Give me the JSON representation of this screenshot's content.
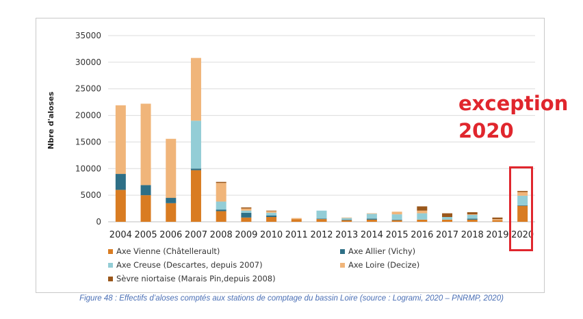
{
  "chart_data": {
    "type": "bar",
    "stacked": true,
    "ylabel": "Nbre d'aloses",
    "ylim": [
      0,
      35000
    ],
    "yticks": [
      0,
      5000,
      10000,
      15000,
      20000,
      25000,
      30000,
      35000
    ],
    "categories": [
      "2004",
      "2005",
      "2006",
      "2007",
      "2008",
      "2009",
      "2010",
      "2011",
      "2012",
      "2013",
      "2014",
      "2015",
      "2016",
      "2017",
      "2018",
      "2019",
      "2020"
    ],
    "series": [
      {
        "name": "Axe Vienne (Châtellerault)",
        "color": "#d97c22",
        "values": [
          6000,
          5000,
          3500,
          9700,
          2000,
          800,
          900,
          500,
          500,
          300,
          400,
          300,
          400,
          400,
          400,
          300,
          3000
        ]
      },
      {
        "name": "Axe Allier (Vichy)",
        "color": "#2e6f86",
        "values": [
          3000,
          1900,
          1000,
          300,
          300,
          900,
          300,
          0,
          100,
          100,
          200,
          100,
          0,
          0,
          200,
          0,
          100
        ]
      },
      {
        "name": "Axe Creuse (Descartes, depuis 2007)",
        "color": "#93cdd6",
        "values": [
          0,
          0,
          0,
          9000,
          1500,
          400,
          500,
          0,
          1500,
          300,
          900,
          1000,
          1200,
          500,
          700,
          0,
          1800
        ]
      },
      {
        "name": "Axe Loire (Decize)",
        "color": "#f0b57a",
        "values": [
          12900,
          15300,
          11100,
          11800,
          3500,
          400,
          300,
          200,
          0,
          100,
          100,
          500,
          500,
          0,
          100,
          200,
          700
        ]
      },
      {
        "name": "Sèvre niortaise (Marais Pin,depuis 2008)",
        "color": "#9a571b",
        "values": [
          0,
          0,
          0,
          0,
          200,
          200,
          100,
          0,
          0,
          0,
          0,
          0,
          800,
          700,
          400,
          300,
          200
        ]
      }
    ]
  },
  "annotation": {
    "line1": "exception",
    "line2": "2020"
  },
  "caption": "Figure 48 : Effectifs d’aloses comptés aux stations de comptage du bassin Loire (source : Logrami, 2020 – PNRMP, 2020)"
}
